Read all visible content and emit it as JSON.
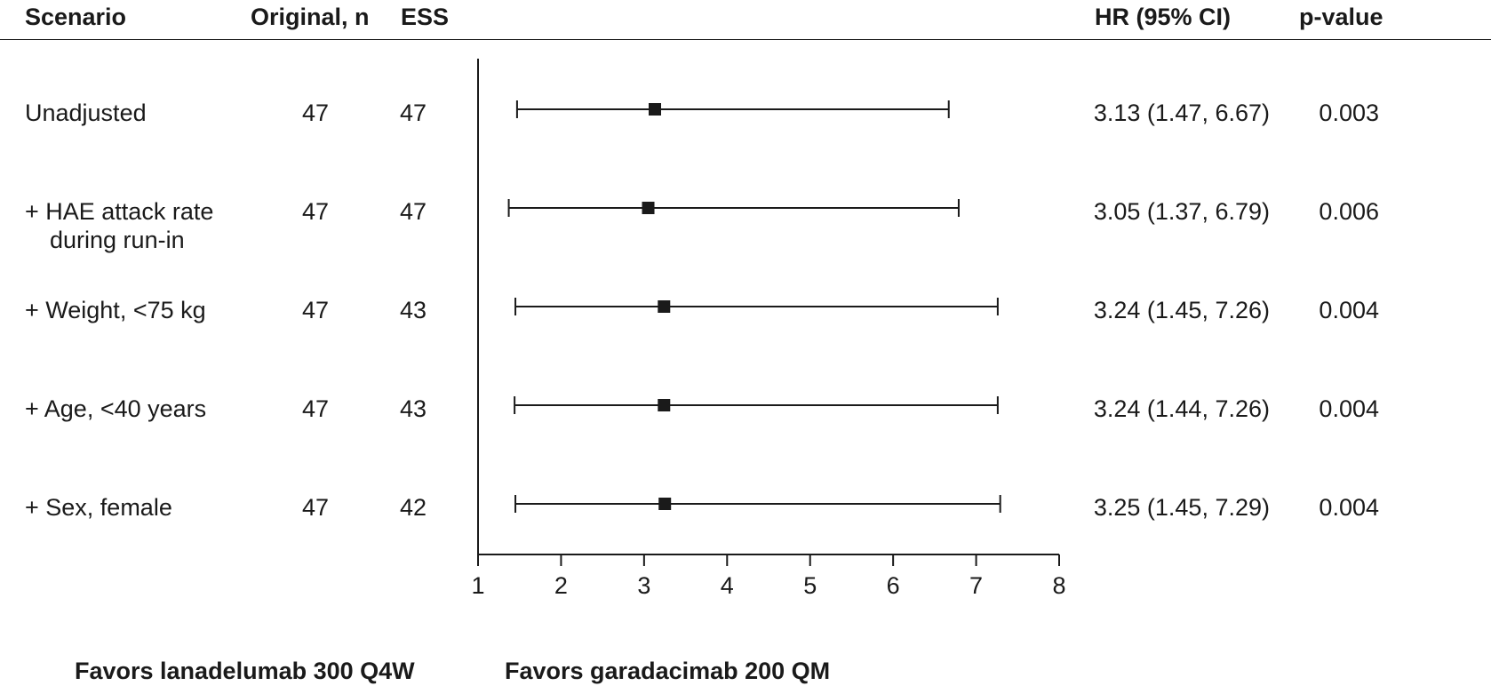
{
  "headers": {
    "scenario": "Scenario",
    "original_n": "Original, n",
    "ess": "ESS",
    "hr": "HR (95% CI)",
    "p_value": "p-value"
  },
  "rows": [
    {
      "scenario": "Unadjusted",
      "scenario_line2": "",
      "original_n": "47",
      "ess": "47",
      "hr_text": "3.13 (1.47, 6.67)",
      "p": "0.003"
    },
    {
      "scenario": "+ HAE attack rate",
      "scenario_line2": "during run-in",
      "original_n": "47",
      "ess": "47",
      "hr_text": "3.05 (1.37, 6.79)",
      "p": "0.006"
    },
    {
      "scenario": "+ Weight, <75 kg",
      "scenario_line2": "",
      "original_n": "47",
      "ess": "43",
      "hr_text": "3.24 (1.45, 7.26)",
      "p": "0.004"
    },
    {
      "scenario": "+ Age, <40 years",
      "scenario_line2": "",
      "original_n": "47",
      "ess": "43",
      "hr_text": "3.24 (1.44, 7.26)",
      "p": "0.004"
    },
    {
      "scenario": "+ Sex, female",
      "scenario_line2": "",
      "original_n": "47",
      "ess": "42",
      "hr_text": "3.25 (1.45, 7.29)",
      "p": "0.004"
    }
  ],
  "footer": {
    "left": "Favors lanadelumab 300 Q4W",
    "right": "Favors garadacimab 200 QM"
  },
  "chart_data": {
    "type": "forest",
    "x_ticks": [
      "1",
      "2",
      "3",
      "4",
      "5",
      "6",
      "7",
      "8"
    ],
    "xlim": [
      1,
      8
    ],
    "reference_line": 1,
    "estimates": [
      {
        "hr": 3.13,
        "lower": 1.47,
        "upper": 6.67
      },
      {
        "hr": 3.05,
        "lower": 1.37,
        "upper": 6.79
      },
      {
        "hr": 3.24,
        "lower": 1.45,
        "upper": 7.26
      },
      {
        "hr": 3.24,
        "lower": 1.44,
        "upper": 7.26
      },
      {
        "hr": 3.25,
        "lower": 1.45,
        "upper": 7.29
      }
    ],
    "marker_color": "#1a1a1a",
    "grid": false
  }
}
